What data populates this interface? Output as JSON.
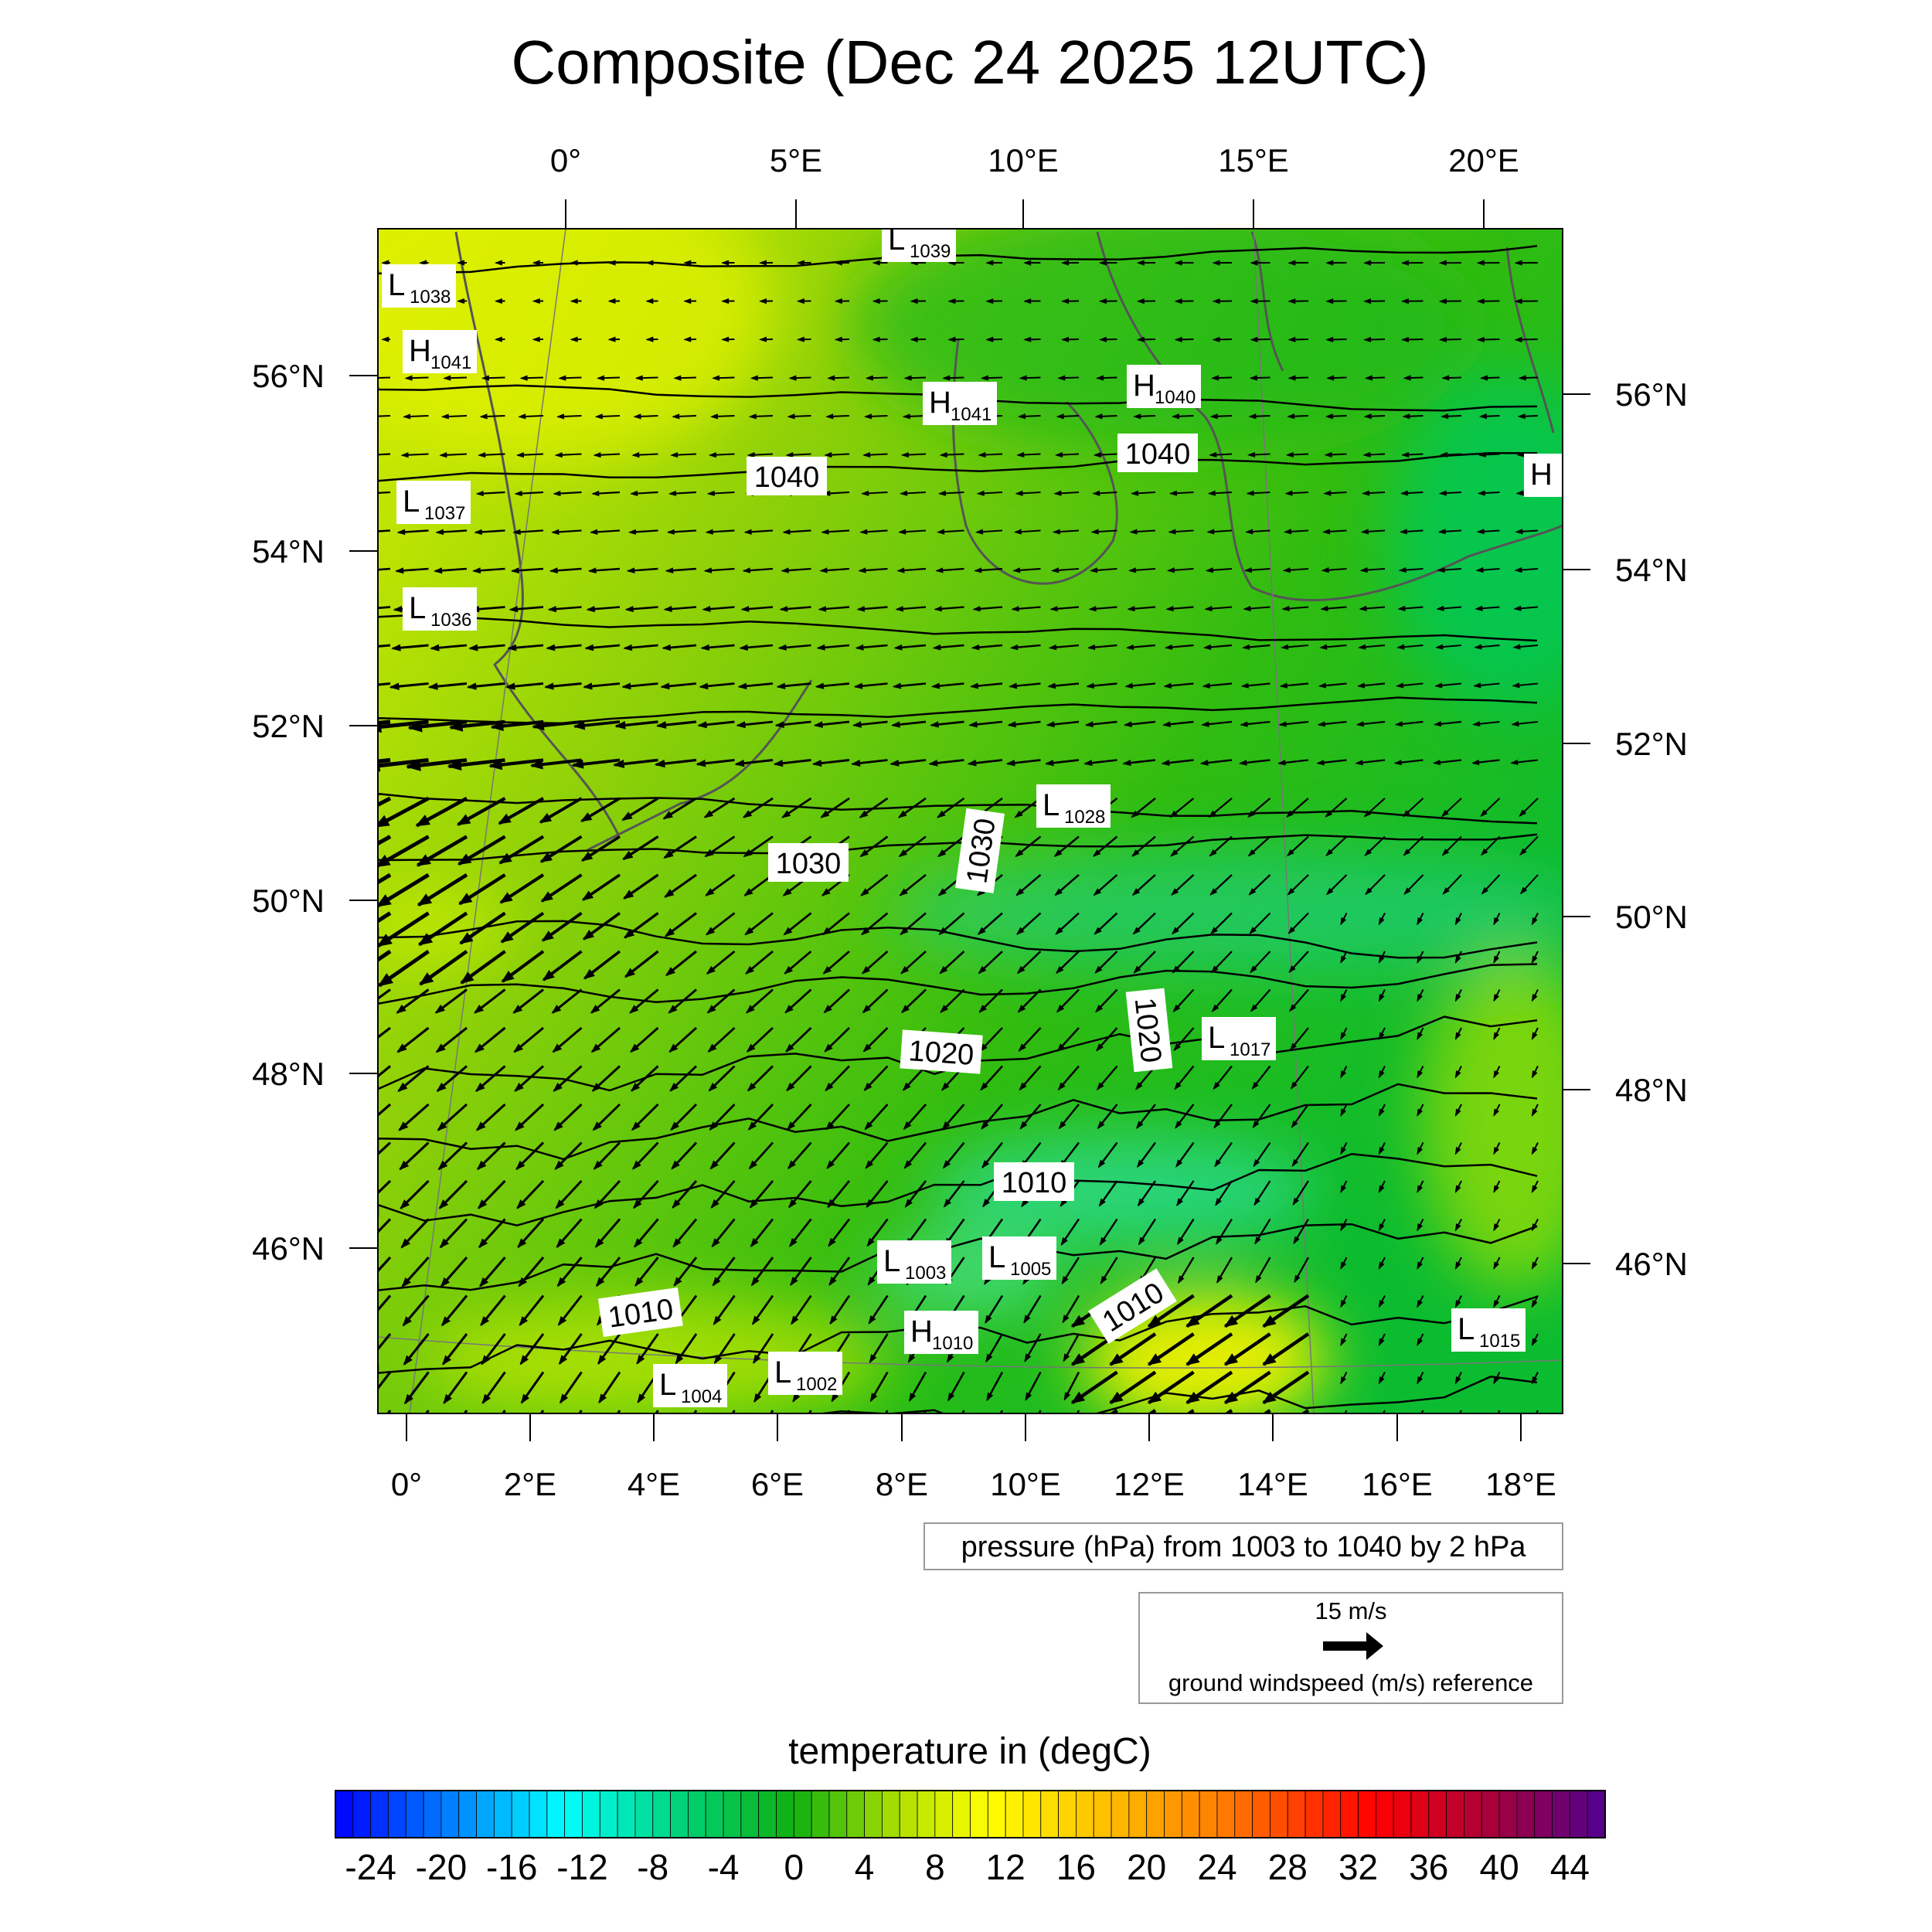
{
  "title": "Composite (Dec 24 2025 12UTC)",
  "top_lon_labels": [
    "0°",
    "5°E",
    "10°E",
    "15°E",
    "20°E"
  ],
  "bottom_lon_labels": [
    "0°",
    "2°E",
    "4°E",
    "6°E",
    "8°E",
    "10°E",
    "12°E",
    "14°E",
    "16°E",
    "18°E"
  ],
  "left_lat_labels": [
    "56°N",
    "54°N",
    "52°N",
    "50°N",
    "48°N",
    "46°N"
  ],
  "right_lat_labels": [
    "56°N",
    "54°N",
    "52°N",
    "50°N",
    "48°N",
    "46°N"
  ],
  "pressure_centers": [
    {
      "type": "L",
      "value": "1038"
    },
    {
      "type": "H",
      "value": "1041"
    },
    {
      "type": "L",
      "value": "1039"
    },
    {
      "type": "H",
      "value": "1041"
    },
    {
      "type": "H",
      "value": "1040"
    },
    {
      "type": "L",
      "value": "1037"
    },
    {
      "type": "L",
      "value": "1036"
    },
    {
      "type": "L",
      "value": "1028"
    },
    {
      "type": "L",
      "value": "1017"
    },
    {
      "type": "L",
      "value": "1003"
    },
    {
      "type": "L",
      "value": "1005"
    },
    {
      "type": "H",
      "value": "1010"
    },
    {
      "type": "L",
      "value": "1015"
    },
    {
      "type": "L",
      "value": "1004"
    },
    {
      "type": "L",
      "value": "1002"
    },
    {
      "type": "H",
      "value": ""
    }
  ],
  "contour_labels": [
    "1040",
    "1040",
    "1030",
    "1030",
    "1020",
    "1020",
    "1010",
    "1010",
    "1010"
  ],
  "pressure_legend": "pressure (hPa) from 1003 to 1040 by 2 hPa",
  "wind_reference": {
    "speed_label": "15 m/s",
    "caption": "ground windspeed (m/s) reference"
  },
  "colorbar": {
    "title": "temperature in (degC)",
    "min": -26,
    "max": 46,
    "step": 1,
    "tick_labels": [
      "-24",
      "-20",
      "-16",
      "-12",
      "-8",
      "-4",
      "0",
      "4",
      "8",
      "12",
      "16",
      "20",
      "24",
      "28",
      "32",
      "36",
      "40",
      "44"
    ],
    "color_stops": [
      {
        "value": -26,
        "color": "#0000ff"
      },
      {
        "value": -13,
        "color": "#00ffff"
      },
      {
        "value": -6,
        "color": "#00d070"
      },
      {
        "value": 0,
        "color": "#10b010"
      },
      {
        "value": 6,
        "color": "#b0e000"
      },
      {
        "value": 11,
        "color": "#ffff00"
      },
      {
        "value": 24,
        "color": "#ff8000"
      },
      {
        "value": 33,
        "color": "#ff0000"
      },
      {
        "value": 40,
        "color": "#a00040"
      },
      {
        "value": 46,
        "color": "#500090"
      }
    ]
  }
}
